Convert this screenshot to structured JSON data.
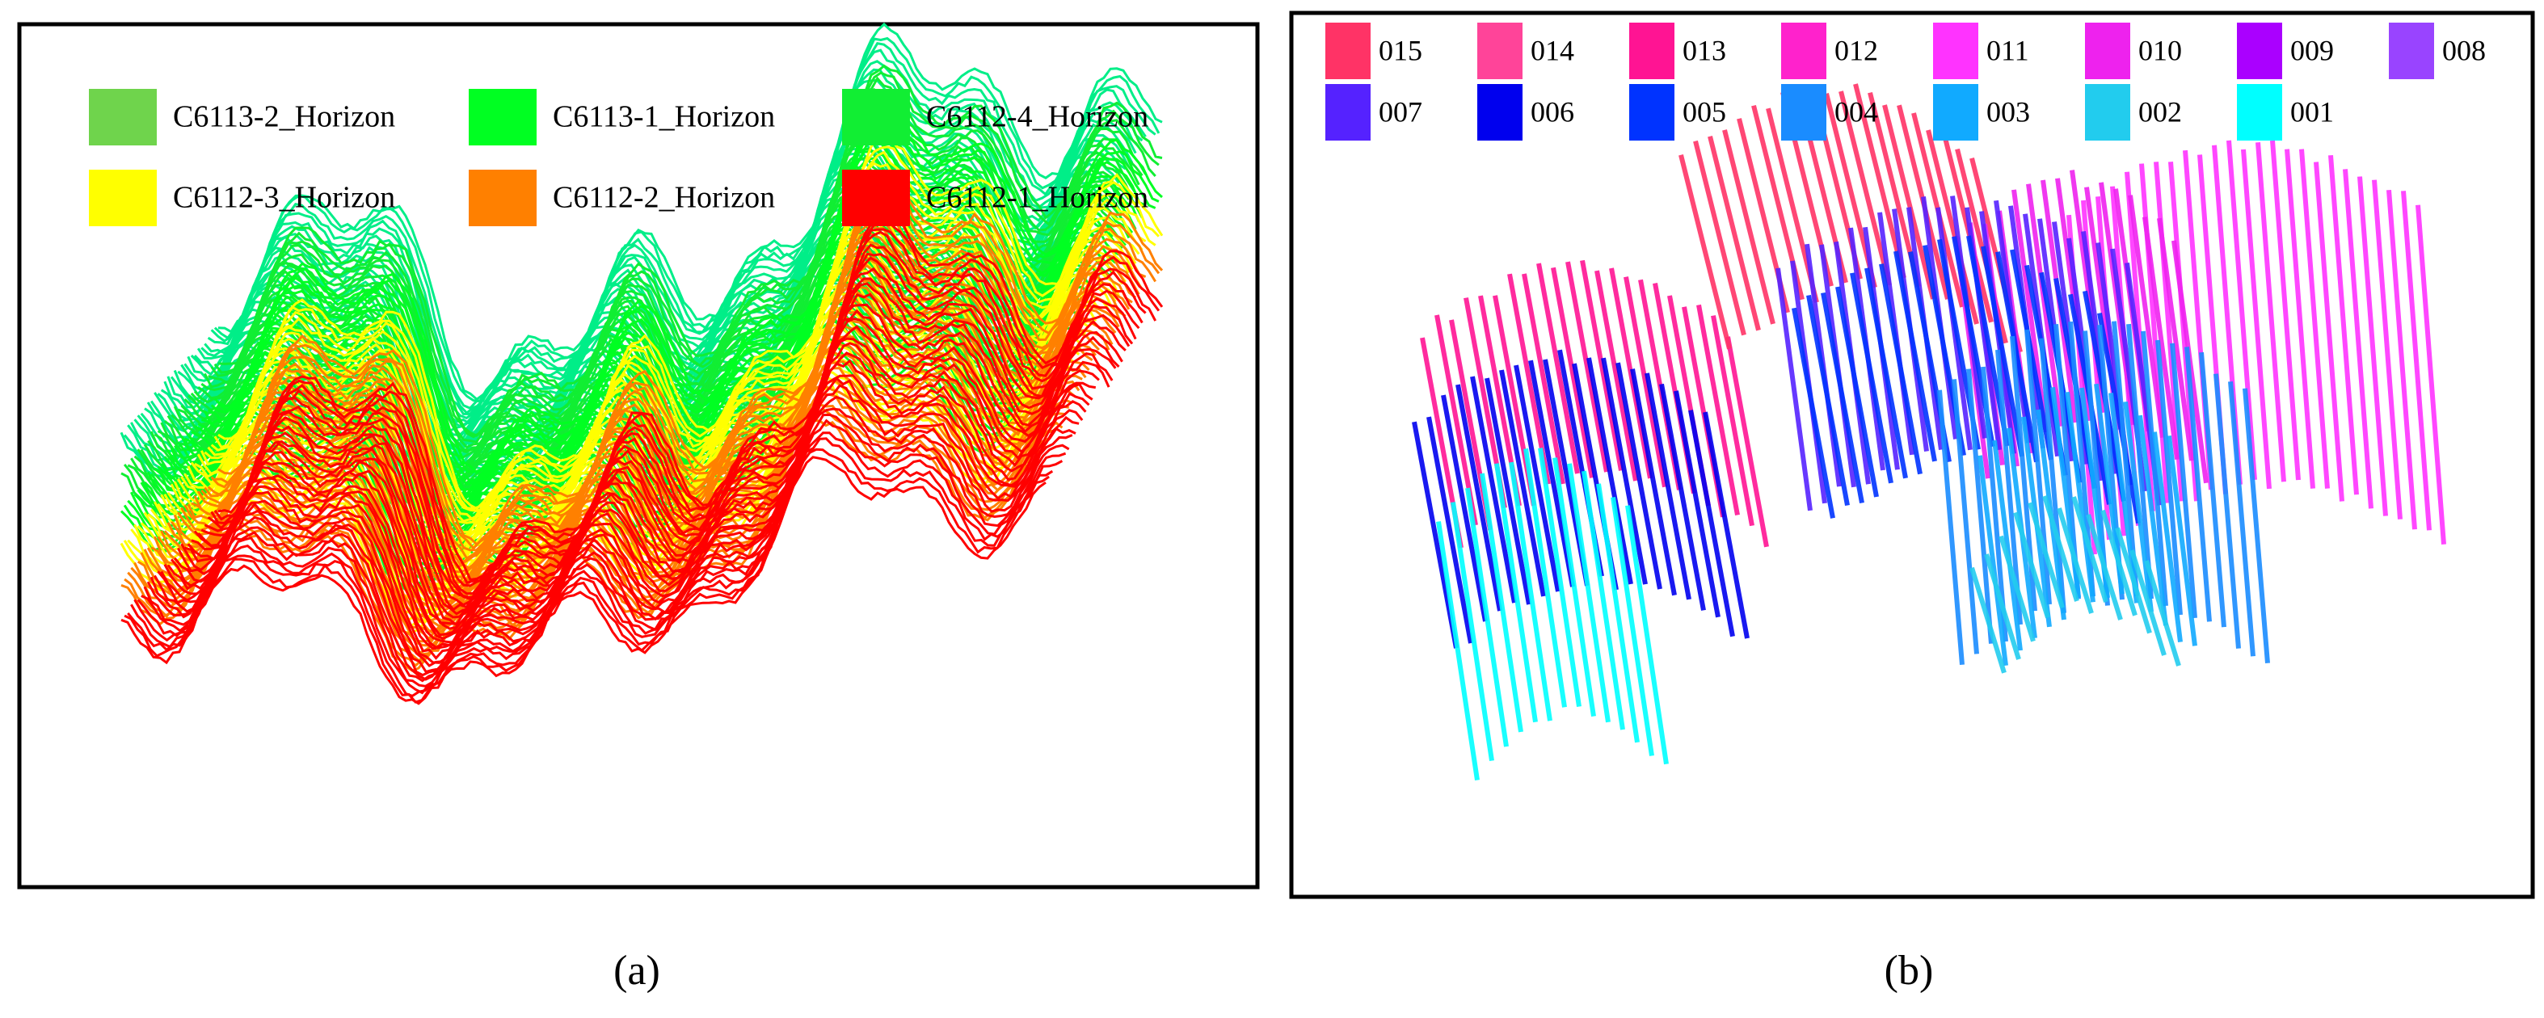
{
  "panel_a": {
    "caption": "(a)",
    "legend": [
      {
        "name": "C6113-2_Horizon",
        "color": "#6fd44c"
      },
      {
        "name": "C6113-1_Horizon",
        "color": "#00ff22"
      },
      {
        "name": "C6112-4_Horizon",
        "color": "#11ee33"
      },
      {
        "name": "C6112-3_Horizon",
        "color": "#ffff00"
      },
      {
        "name": "C6112-2_Horizon",
        "color": "#ff8000"
      },
      {
        "name": "C6112-1_Horizon",
        "color": "#ff0000"
      }
    ]
  },
  "panel_b": {
    "caption": "(b)",
    "legend": [
      {
        "name": "015",
        "color": "#ff3366"
      },
      {
        "name": "014",
        "color": "#ff4499"
      },
      {
        "name": "013",
        "color": "#ff1493"
      },
      {
        "name": "012",
        "color": "#ff22cc"
      },
      {
        "name": "011",
        "color": "#ff33ff"
      },
      {
        "name": "010",
        "color": "#ee22ee"
      },
      {
        "name": "009",
        "color": "#aa00ff"
      },
      {
        "name": "008",
        "color": "#9944ff"
      },
      {
        "name": "007",
        "color": "#5522ff"
      },
      {
        "name": "006",
        "color": "#0000ee"
      },
      {
        "name": "005",
        "color": "#0033ff"
      },
      {
        "name": "004",
        "color": "#1a8cff"
      },
      {
        "name": "003",
        "color": "#11aaff"
      },
      {
        "name": "002",
        "color": "#22ccee"
      },
      {
        "name": "001",
        "color": "#00ffff"
      }
    ]
  }
}
